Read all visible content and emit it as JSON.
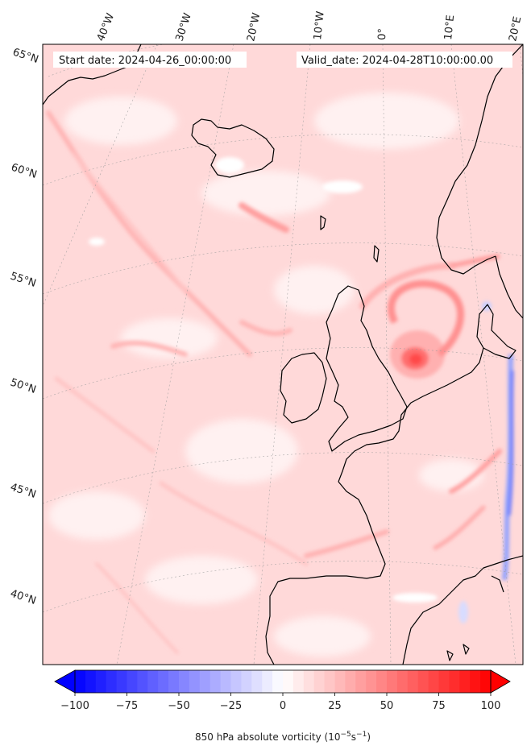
{
  "header": {
    "start_date": "Start date: 2024-04-26_00:00:00",
    "valid_date": "Valid_date: 2024-04-28T10:00:00.00"
  },
  "map": {
    "projection": "conic",
    "field": "850 hPa absolute vorticity",
    "longitude_labels": [
      "40°W",
      "30°W",
      "20°W",
      "10°W",
      "0°",
      "10°E",
      "20°E"
    ],
    "latitude_labels": [
      "65°N",
      "60°N",
      "55°N",
      "50°N",
      "45°N",
      "40°N"
    ],
    "gridlines": true,
    "colors": {
      "coastline": "#000000",
      "positive": "#ff0000",
      "negative": "#0000ff",
      "zero": "#ffffff"
    }
  },
  "colorbar": {
    "label": "850 hPa absolute vorticity (10",
    "label_exp": "−5",
    "label_unit": "s",
    "label_exp2": "−1",
    "label_close": ")",
    "ticks": [
      "−100",
      "−75",
      "−50",
      "−25",
      "0",
      "25",
      "50",
      "75",
      "100"
    ],
    "range": [
      -100,
      100
    ],
    "levels": 41,
    "extend": "both",
    "colormap": "bwr"
  }
}
